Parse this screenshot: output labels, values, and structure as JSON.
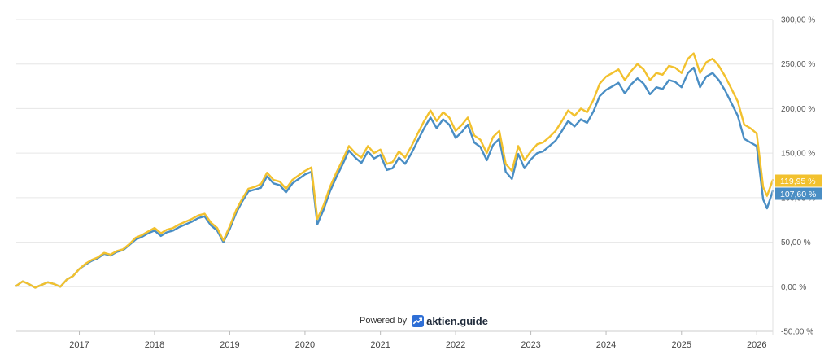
{
  "chart_data": {
    "type": "line",
    "title": "",
    "xlabel": "",
    "ylabel": "",
    "ylim": [
      -50,
      300
    ],
    "xlim": [
      "2016-03-01",
      "2026-03-20"
    ],
    "y_ticks": [
      "300,00 %",
      "250,00 %",
      "200,00 %",
      "150,00 %",
      "100,00 %",
      "50,00 %",
      "0,00 %",
      "-50,00 %"
    ],
    "y_tick_values": [
      300,
      250,
      200,
      150,
      100,
      50,
      0,
      -50
    ],
    "x_ticks": [
      "2017",
      "2018",
      "2019",
      "2020",
      "2021",
      "2022",
      "2023",
      "2024",
      "2025",
      "2026"
    ],
    "grid": true,
    "legend": "none",
    "series": [
      {
        "color": "#f2c12e",
        "last_label": "119,95 %",
        "points": [
          [
            "2016-03-01",
            1
          ],
          [
            "2016-04-01",
            6
          ],
          [
            "2016-05-01",
            3
          ],
          [
            "2016-06-01",
            -1
          ],
          [
            "2016-07-01",
            2
          ],
          [
            "2016-08-01",
            5
          ],
          [
            "2016-09-01",
            3
          ],
          [
            "2016-10-01",
            0
          ],
          [
            "2016-11-01",
            8
          ],
          [
            "2016-12-01",
            12
          ],
          [
            "2017-01-01",
            20
          ],
          [
            "2017-02-01",
            26
          ],
          [
            "2017-03-01",
            30
          ],
          [
            "2017-04-01",
            33
          ],
          [
            "2017-05-01",
            38
          ],
          [
            "2017-06-01",
            36
          ],
          [
            "2017-07-01",
            40
          ],
          [
            "2017-08-01",
            42
          ],
          [
            "2017-09-01",
            48
          ],
          [
            "2017-10-01",
            55
          ],
          [
            "2017-11-01",
            58
          ],
          [
            "2017-12-01",
            62
          ],
          [
            "2018-01-01",
            66
          ],
          [
            "2018-02-01",
            60
          ],
          [
            "2018-03-01",
            64
          ],
          [
            "2018-04-01",
            66
          ],
          [
            "2018-05-01",
            70
          ],
          [
            "2018-06-01",
            73
          ],
          [
            "2018-07-01",
            76
          ],
          [
            "2018-08-01",
            80
          ],
          [
            "2018-09-01",
            82
          ],
          [
            "2018-10-01",
            72
          ],
          [
            "2018-11-01",
            66
          ],
          [
            "2018-12-01",
            52
          ],
          [
            "2019-01-01",
            68
          ],
          [
            "2019-02-01",
            86
          ],
          [
            "2019-03-01",
            98
          ],
          [
            "2019-04-01",
            110
          ],
          [
            "2019-05-01",
            112
          ],
          [
            "2019-06-01",
            115
          ],
          [
            "2019-07-01",
            128
          ],
          [
            "2019-08-01",
            120
          ],
          [
            "2019-09-01",
            118
          ],
          [
            "2019-10-01",
            110
          ],
          [
            "2019-11-01",
            120
          ],
          [
            "2019-12-01",
            125
          ],
          [
            "2020-01-01",
            130
          ],
          [
            "2020-02-01",
            134
          ],
          [
            "2020-03-01",
            76
          ],
          [
            "2020-04-01",
            92
          ],
          [
            "2020-05-01",
            112
          ],
          [
            "2020-06-01",
            128
          ],
          [
            "2020-07-01",
            142
          ],
          [
            "2020-08-01",
            158
          ],
          [
            "2020-09-01",
            150
          ],
          [
            "2020-10-01",
            145
          ],
          [
            "2020-11-01",
            158
          ],
          [
            "2020-12-01",
            150
          ],
          [
            "2021-01-01",
            154
          ],
          [
            "2021-02-01",
            138
          ],
          [
            "2021-03-01",
            140
          ],
          [
            "2021-04-01",
            152
          ],
          [
            "2021-05-01",
            145
          ],
          [
            "2021-06-01",
            158
          ],
          [
            "2021-07-01",
            172
          ],
          [
            "2021-08-01",
            186
          ],
          [
            "2021-09-01",
            198
          ],
          [
            "2021-10-01",
            186
          ],
          [
            "2021-11-01",
            196
          ],
          [
            "2021-12-01",
            190
          ],
          [
            "2022-01-01",
            175
          ],
          [
            "2022-02-01",
            182
          ],
          [
            "2022-03-01",
            190
          ],
          [
            "2022-04-01",
            170
          ],
          [
            "2022-05-01",
            165
          ],
          [
            "2022-06-01",
            150
          ],
          [
            "2022-07-01",
            168
          ],
          [
            "2022-08-01",
            175
          ],
          [
            "2022-09-01",
            138
          ],
          [
            "2022-10-01",
            130
          ],
          [
            "2022-11-01",
            158
          ],
          [
            "2022-12-01",
            142
          ],
          [
            "2023-01-01",
            152
          ],
          [
            "2023-02-01",
            160
          ],
          [
            "2023-03-01",
            162
          ],
          [
            "2023-04-01",
            168
          ],
          [
            "2023-05-01",
            175
          ],
          [
            "2023-06-01",
            186
          ],
          [
            "2023-07-01",
            198
          ],
          [
            "2023-08-01",
            192
          ],
          [
            "2023-09-01",
            200
          ],
          [
            "2023-10-01",
            196
          ],
          [
            "2023-11-01",
            210
          ],
          [
            "2023-12-01",
            228
          ],
          [
            "2024-01-01",
            236
          ],
          [
            "2024-02-01",
            240
          ],
          [
            "2024-03-01",
            244
          ],
          [
            "2024-04-01",
            232
          ],
          [
            "2024-05-01",
            242
          ],
          [
            "2024-06-01",
            250
          ],
          [
            "2024-07-01",
            244
          ],
          [
            "2024-08-01",
            232
          ],
          [
            "2024-09-01",
            240
          ],
          [
            "2024-10-01",
            238
          ],
          [
            "2024-11-01",
            248
          ],
          [
            "2024-12-01",
            246
          ],
          [
            "2025-01-01",
            240
          ],
          [
            "2025-02-01",
            256
          ],
          [
            "2025-03-01",
            262
          ],
          [
            "2025-04-01",
            240
          ],
          [
            "2025-05-01",
            252
          ],
          [
            "2025-06-01",
            256
          ],
          [
            "2025-07-01",
            248
          ],
          [
            "2025-08-01",
            236
          ],
          [
            "2025-09-01",
            222
          ],
          [
            "2025-10-01",
            208
          ],
          [
            "2025-11-01",
            182
          ],
          [
            "2025-12-01",
            178
          ],
          [
            "2026-01-01",
            172
          ],
          [
            "2026-02-01",
            112
          ],
          [
            "2026-02-20",
            102
          ],
          [
            "2026-03-20",
            119.95
          ]
        ]
      },
      {
        "color": "#4a8ec4",
        "last_label": "107,60 %",
        "points": [
          [
            "2016-03-01",
            1
          ],
          [
            "2016-04-01",
            6
          ],
          [
            "2016-05-01",
            3
          ],
          [
            "2016-06-01",
            -1
          ],
          [
            "2016-07-01",
            2
          ],
          [
            "2016-08-01",
            5
          ],
          [
            "2016-09-01",
            3
          ],
          [
            "2016-10-01",
            0
          ],
          [
            "2016-11-01",
            8
          ],
          [
            "2016-12-01",
            12
          ],
          [
            "2017-01-01",
            20
          ],
          [
            "2017-02-01",
            25
          ],
          [
            "2017-03-01",
            29
          ],
          [
            "2017-04-01",
            32
          ],
          [
            "2017-05-01",
            37
          ],
          [
            "2017-06-01",
            35
          ],
          [
            "2017-07-01",
            39
          ],
          [
            "2017-08-01",
            41
          ],
          [
            "2017-09-01",
            47
          ],
          [
            "2017-10-01",
            53
          ],
          [
            "2017-11-01",
            56
          ],
          [
            "2017-12-01",
            60
          ],
          [
            "2018-01-01",
            63
          ],
          [
            "2018-02-01",
            57
          ],
          [
            "2018-03-01",
            61
          ],
          [
            "2018-04-01",
            63
          ],
          [
            "2018-05-01",
            67
          ],
          [
            "2018-06-01",
            70
          ],
          [
            "2018-07-01",
            73
          ],
          [
            "2018-08-01",
            77
          ],
          [
            "2018-09-01",
            79
          ],
          [
            "2018-10-01",
            69
          ],
          [
            "2018-11-01",
            63
          ],
          [
            "2018-12-01",
            50
          ],
          [
            "2019-01-01",
            65
          ],
          [
            "2019-02-01",
            83
          ],
          [
            "2019-03-01",
            95
          ],
          [
            "2019-04-01",
            107
          ],
          [
            "2019-05-01",
            109
          ],
          [
            "2019-06-01",
            111
          ],
          [
            "2019-07-01",
            124
          ],
          [
            "2019-08-01",
            116
          ],
          [
            "2019-09-01",
            114
          ],
          [
            "2019-10-01",
            106
          ],
          [
            "2019-11-01",
            116
          ],
          [
            "2019-12-01",
            121
          ],
          [
            "2020-01-01",
            126
          ],
          [
            "2020-02-01",
            129
          ],
          [
            "2020-03-01",
            70
          ],
          [
            "2020-04-01",
            87
          ],
          [
            "2020-05-01",
            107
          ],
          [
            "2020-06-01",
            123
          ],
          [
            "2020-07-01",
            137
          ],
          [
            "2020-08-01",
            153
          ],
          [
            "2020-09-01",
            145
          ],
          [
            "2020-10-01",
            139
          ],
          [
            "2020-11-01",
            152
          ],
          [
            "2020-12-01",
            144
          ],
          [
            "2021-01-01",
            148
          ],
          [
            "2021-02-01",
            131
          ],
          [
            "2021-03-01",
            133
          ],
          [
            "2021-04-01",
            145
          ],
          [
            "2021-05-01",
            138
          ],
          [
            "2021-06-01",
            150
          ],
          [
            "2021-07-01",
            164
          ],
          [
            "2021-08-01",
            178
          ],
          [
            "2021-09-01",
            190
          ],
          [
            "2021-10-01",
            178
          ],
          [
            "2021-11-01",
            188
          ],
          [
            "2021-12-01",
            182
          ],
          [
            "2022-01-01",
            167
          ],
          [
            "2022-02-01",
            174
          ],
          [
            "2022-03-01",
            182
          ],
          [
            "2022-04-01",
            162
          ],
          [
            "2022-05-01",
            157
          ],
          [
            "2022-06-01",
            142
          ],
          [
            "2022-07-01",
            159
          ],
          [
            "2022-08-01",
            166
          ],
          [
            "2022-09-01",
            129
          ],
          [
            "2022-10-01",
            121
          ],
          [
            "2022-11-01",
            149
          ],
          [
            "2022-12-01",
            133
          ],
          [
            "2023-01-01",
            143
          ],
          [
            "2023-02-01",
            150
          ],
          [
            "2023-03-01",
            152
          ],
          [
            "2023-04-01",
            158
          ],
          [
            "2023-05-01",
            164
          ],
          [
            "2023-06-01",
            175
          ],
          [
            "2023-07-01",
            186
          ],
          [
            "2023-08-01",
            180
          ],
          [
            "2023-09-01",
            188
          ],
          [
            "2023-10-01",
            184
          ],
          [
            "2023-11-01",
            197
          ],
          [
            "2023-12-01",
            214
          ],
          [
            "2024-01-01",
            221
          ],
          [
            "2024-02-01",
            225
          ],
          [
            "2024-03-01",
            229
          ],
          [
            "2024-04-01",
            217
          ],
          [
            "2024-05-01",
            227
          ],
          [
            "2024-06-01",
            234
          ],
          [
            "2024-07-01",
            228
          ],
          [
            "2024-08-01",
            216
          ],
          [
            "2024-09-01",
            224
          ],
          [
            "2024-10-01",
            222
          ],
          [
            "2024-11-01",
            232
          ],
          [
            "2024-12-01",
            230
          ],
          [
            "2025-01-01",
            224
          ],
          [
            "2025-02-01",
            240
          ],
          [
            "2025-03-01",
            246
          ],
          [
            "2025-04-01",
            224
          ],
          [
            "2025-05-01",
            236
          ],
          [
            "2025-06-01",
            240
          ],
          [
            "2025-07-01",
            232
          ],
          [
            "2025-08-01",
            220
          ],
          [
            "2025-09-01",
            206
          ],
          [
            "2025-10-01",
            192
          ],
          [
            "2025-11-01",
            166
          ],
          [
            "2025-12-01",
            162
          ],
          [
            "2026-01-01",
            158
          ],
          [
            "2026-02-01",
            98
          ],
          [
            "2026-02-20",
            88
          ],
          [
            "2026-03-20",
            107.6
          ]
        ]
      }
    ]
  },
  "footer": {
    "powered_label": "Powered by",
    "brand_name": "aktien.guide"
  }
}
